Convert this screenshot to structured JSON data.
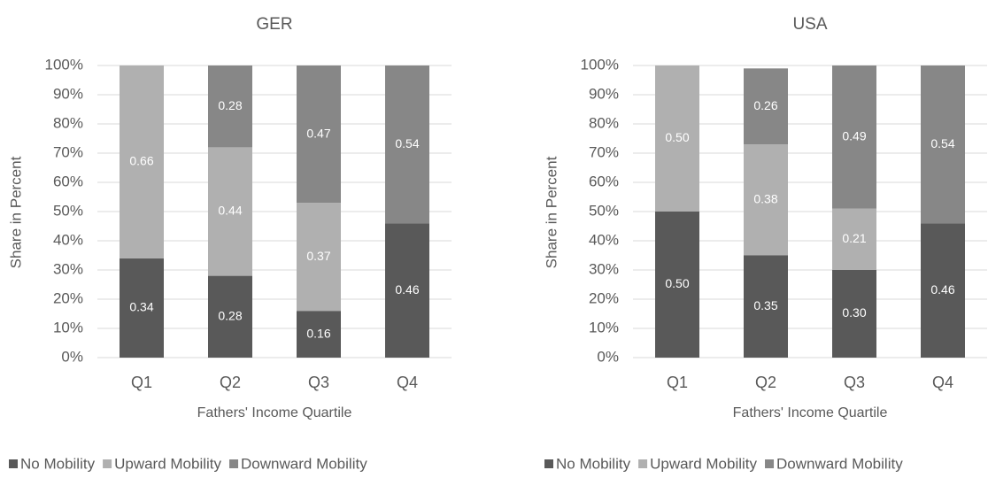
{
  "chart_data": [
    {
      "type": "stacked_bar",
      "title": "GER",
      "x_label": "Fathers' Income Quartile",
      "y_label": "Share in Percent",
      "categories": [
        "Q1",
        "Q2",
        "Q3",
        "Q4"
      ],
      "series": [
        {
          "name": "No Mobility",
          "color": "#595959",
          "values": [
            34,
            28,
            16,
            46
          ],
          "value_labels": [
            "0.34",
            "0.28",
            "0.16",
            "0.46"
          ]
        },
        {
          "name": "Upward Mobility",
          "color": "#b0b0b0",
          "values": [
            66,
            44,
            37,
            null
          ],
          "value_labels": [
            "0.66",
            "0.44",
            "0.37",
            null
          ]
        },
        {
          "name": "Downward Mobility",
          "color": "#878787",
          "values": [
            null,
            28,
            47,
            54
          ],
          "value_labels": [
            null,
            "0.28",
            "0.47",
            "0.54"
          ]
        }
      ],
      "ylim": [
        0,
        100
      ],
      "yticks": [
        {
          "value": 0,
          "label": "0%"
        },
        {
          "value": 10,
          "label": "10%"
        },
        {
          "value": 20,
          "label": "20%"
        },
        {
          "value": 30,
          "label": "30%"
        },
        {
          "value": 40,
          "label": "40%"
        },
        {
          "value": 50,
          "label": "50%"
        },
        {
          "value": 60,
          "label": "60%"
        },
        {
          "value": 70,
          "label": "70%"
        },
        {
          "value": 80,
          "label": "80%"
        },
        {
          "value": 90,
          "label": "90%"
        },
        {
          "value": 100,
          "label": "100%"
        }
      ],
      "grid": true,
      "legend": "bottom"
    },
    {
      "type": "stacked_bar",
      "title": "USA",
      "x_label": "Fathers' Income Quartile",
      "y_label": "Share in Percent",
      "categories": [
        "Q1",
        "Q2",
        "Q3",
        "Q4"
      ],
      "series": [
        {
          "name": "No Mobility",
          "color": "#595959",
          "values": [
            50,
            35,
            30,
            46
          ],
          "value_labels": [
            "0.50",
            "0.35",
            "0.30",
            "0.46"
          ]
        },
        {
          "name": "Upward Mobility",
          "color": "#b0b0b0",
          "values": [
            50,
            38,
            21,
            null
          ],
          "value_labels": [
            "0.50",
            "0.38",
            "0.21",
            null
          ]
        },
        {
          "name": "Downward Mobility",
          "color": "#878787",
          "values": [
            null,
            26,
            49,
            54
          ],
          "value_labels": [
            null,
            "0.26",
            "0.49",
            "0.54"
          ]
        }
      ],
      "ylim": [
        0,
        100
      ],
      "yticks": [
        {
          "value": 0,
          "label": "0%"
        },
        {
          "value": 10,
          "label": "10%"
        },
        {
          "value": 20,
          "label": "20%"
        },
        {
          "value": 30,
          "label": "30%"
        },
        {
          "value": 40,
          "label": "40%"
        },
        {
          "value": 50,
          "label": "50%"
        },
        {
          "value": 60,
          "label": "60%"
        },
        {
          "value": 70,
          "label": "70%"
        },
        {
          "value": 80,
          "label": "80%"
        },
        {
          "value": 90,
          "label": "90%"
        },
        {
          "value": 100,
          "label": "100%"
        }
      ],
      "grid": true,
      "legend": "bottom"
    }
  ]
}
